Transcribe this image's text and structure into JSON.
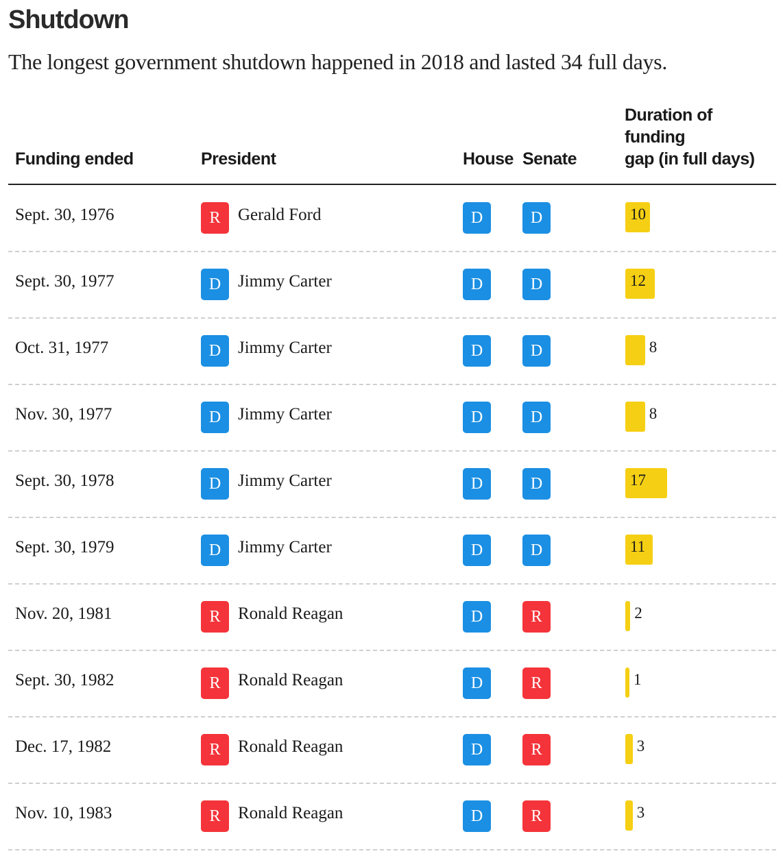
{
  "title": "Shutdown",
  "subtitle": "The longest government shutdown happened in 2018 and lasted 34 full days.",
  "colors": {
    "R": "#f4343a",
    "D": "#1b8fe3",
    "bar": "#f5cf14"
  },
  "chart_data": {
    "type": "table",
    "columns": [
      "Funding ended",
      "President",
      "House",
      "Senate",
      "Duration of funding gap (in full days)"
    ],
    "duration_header_lines": [
      "Duration of",
      "funding",
      "gap (in full days)"
    ],
    "rows": [
      {
        "date": "Sept. 30, 1976",
        "president": "Gerald Ford",
        "party": "R",
        "house": "D",
        "senate": "D",
        "days": 10
      },
      {
        "date": "Sept. 30, 1977",
        "president": "Jimmy Carter",
        "party": "D",
        "house": "D",
        "senate": "D",
        "days": 12
      },
      {
        "date": "Oct. 31, 1977",
        "president": "Jimmy Carter",
        "party": "D",
        "house": "D",
        "senate": "D",
        "days": 8
      },
      {
        "date": "Nov. 30, 1977",
        "president": "Jimmy Carter",
        "party": "D",
        "house": "D",
        "senate": "D",
        "days": 8
      },
      {
        "date": "Sept. 30, 1978",
        "president": "Jimmy Carter",
        "party": "D",
        "house": "D",
        "senate": "D",
        "days": 17
      },
      {
        "date": "Sept. 30, 1979",
        "president": "Jimmy Carter",
        "party": "D",
        "house": "D",
        "senate": "D",
        "days": 11
      },
      {
        "date": "Nov. 20, 1981",
        "president": "Ronald Reagan",
        "party": "R",
        "house": "D",
        "senate": "R",
        "days": 2
      },
      {
        "date": "Sept. 30, 1982",
        "president": "Ronald Reagan",
        "party": "R",
        "house": "D",
        "senate": "R",
        "days": 1
      },
      {
        "date": "Dec. 17, 1982",
        "president": "Ronald Reagan",
        "party": "R",
        "house": "D",
        "senate": "R",
        "days": 3
      },
      {
        "date": "Nov. 10, 1983",
        "president": "Ronald Reagan",
        "party": "R",
        "house": "D",
        "senate": "R",
        "days": 3
      }
    ]
  }
}
